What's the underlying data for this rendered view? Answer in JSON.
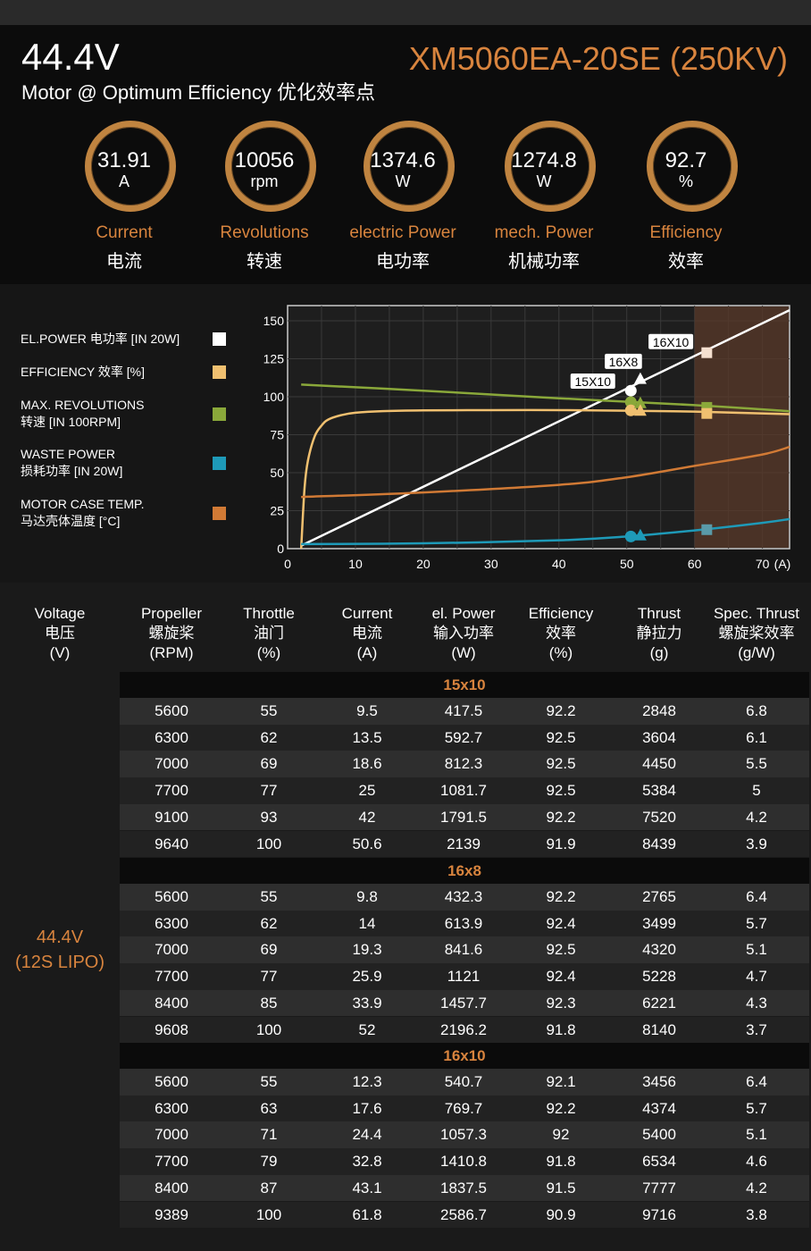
{
  "header": {
    "voltage": "44.4V",
    "subtitle": "Motor @ Optimum Efficiency  优化效率点",
    "model": "XM5060EA-20SE (250KV)"
  },
  "gauges": [
    {
      "value": "31.91",
      "unit": "A",
      "label_en": "Current",
      "label_zh": "电流"
    },
    {
      "value": "10056",
      "unit": "rpm",
      "label_en": "Revolutions",
      "label_zh": "转速"
    },
    {
      "value": "1374.6",
      "unit": "W",
      "label_en": "electric Power",
      "label_zh": "电功率"
    },
    {
      "value": "1274.8",
      "unit": "W",
      "label_en": "mech. Power",
      "label_zh": "机械功率"
    },
    {
      "value": "92.7",
      "unit": "%",
      "label_en": "Efficiency",
      "label_zh": "效率"
    }
  ],
  "legend": [
    {
      "line1": "EL.POWER 电功率 [IN 20W]",
      "line2": "",
      "color": "#ffffff"
    },
    {
      "line1": "EFFICIENCY 效率 [%]",
      "line2": "",
      "color": "#f0c070"
    },
    {
      "line1": "MAX. REVOLUTIONS",
      "line2": "转速 [IN 100RPM]",
      "color": "#8aa83a"
    },
    {
      "line1": "WASTE POWER",
      "line2": "损耗功率 [IN 20W]",
      "color": "#1e9ab8"
    },
    {
      "line1": "MOTOR CASE TEMP.",
      "line2": "马达壳体温度 [°C]",
      "color": "#d17a35"
    }
  ],
  "chart_data": {
    "type": "line",
    "xlim": [
      0,
      74
    ],
    "ylim": [
      0,
      160
    ],
    "x_ticks": [
      {
        "value": 0,
        "label": "0"
      },
      {
        "value": 10,
        "label": "10"
      },
      {
        "value": 20,
        "label": "20"
      },
      {
        "value": 30,
        "label": "30"
      },
      {
        "value": 40,
        "label": "40"
      },
      {
        "value": 50,
        "label": "50"
      },
      {
        "value": 60,
        "label": "60"
      },
      {
        "value": 70,
        "label": "70"
      }
    ],
    "x_unit": "(A)",
    "y_ticks": [
      0,
      25,
      50,
      75,
      100,
      125,
      150
    ],
    "grid": true,
    "highlight_region": {
      "x_from": 60,
      "x_to": 74,
      "color": "#5a3a2a"
    },
    "series": [
      {
        "key": "el_power",
        "color": "#ffffff",
        "x": [
          2,
          74
        ],
        "y": [
          2,
          157
        ]
      },
      {
        "key": "efficiency",
        "color": "#f0c070",
        "x": [
          2,
          2.5,
          3,
          4,
          5,
          6,
          8,
          10,
          14,
          20,
          30,
          40,
          50,
          60,
          74
        ],
        "y": [
          0,
          40,
          58,
          74,
          81,
          85,
          88,
          89.5,
          90.5,
          91,
          91.2,
          91.2,
          90.8,
          90.2,
          88.5
        ]
      },
      {
        "key": "max_revolutions",
        "color": "#8aa83a",
        "x": [
          2,
          20,
          40,
          60,
          74
        ],
        "y": [
          108,
          104,
          99,
          94.5,
          90.5
        ]
      },
      {
        "key": "waste_power",
        "color": "#1e9ab8",
        "x": [
          2,
          20,
          40,
          50,
          60,
          70,
          74
        ],
        "y": [
          3,
          3.5,
          5.5,
          8,
          12,
          17,
          19.5
        ]
      },
      {
        "key": "case_temp",
        "color": "#d17a35",
        "x": [
          2,
          20,
          40,
          50,
          60,
          70,
          74
        ],
        "y": [
          34,
          37,
          42,
          47,
          54.5,
          62,
          67
        ]
      }
    ],
    "markers": [
      {
        "prop": "15X10",
        "shape": "circle",
        "x": 50.6,
        "points": [
          {
            "y": 104,
            "color": "#ffffff"
          },
          {
            "y": 96.5,
            "color": "#8aa83a"
          },
          {
            "y": 91,
            "color": "#f0c070"
          },
          {
            "y": 8,
            "color": "#1e9ab8"
          }
        ]
      },
      {
        "prop": "16X8",
        "shape": "triangle",
        "x": 52,
        "points": [
          {
            "y": 112,
            "color": "#ffffff"
          },
          {
            "y": 96,
            "color": "#8aa83a"
          },
          {
            "y": 91,
            "color": "#f0c070"
          },
          {
            "y": 9,
            "color": "#1e9ab8"
          }
        ]
      },
      {
        "prop": "16X10",
        "shape": "square",
        "x": 61.8,
        "points": [
          {
            "y": 129,
            "color": "#f5e0d0"
          },
          {
            "y": 93,
            "color": "#8aa83a"
          },
          {
            "y": 89,
            "color": "#f0c070"
          },
          {
            "y": 12.5,
            "color": "#5a9aa8"
          }
        ]
      }
    ],
    "labels": [
      {
        "text": "15X10",
        "x": 45,
        "y": 110
      },
      {
        "text": "16X8",
        "x": 49.5,
        "y": 123
      },
      {
        "text": "16X10",
        "x": 56.5,
        "y": 136
      }
    ]
  },
  "table": {
    "headers": [
      {
        "en": "Voltage",
        "zh": "电压",
        "unit": "(V)"
      },
      {
        "en": "Propeller",
        "zh": "螺旋桨",
        "unit": "(RPM)"
      },
      {
        "en": "Throttle",
        "zh": "油门",
        "unit": "(%)"
      },
      {
        "en": "Current",
        "zh": "电流",
        "unit": "(A)"
      },
      {
        "en": "el. Power",
        "zh": "输入功率",
        "unit": "(W)"
      },
      {
        "en": "Efficiency",
        "zh": "效率",
        "unit": "(%)"
      },
      {
        "en": "Thrust",
        "zh": "静拉力",
        "unit": "(g)"
      },
      {
        "en": "Spec. Thrust",
        "zh": "螺旋桨效率",
        "unit": "(g/W)"
      }
    ],
    "voltage_line1": "44.4V",
    "voltage_line2": "(12S LIPO)",
    "groups": [
      {
        "name": "15x10",
        "rows": [
          [
            "5600",
            "55",
            "9.5",
            "417.5",
            "92.2",
            "2848",
            "6.8"
          ],
          [
            "6300",
            "62",
            "13.5",
            "592.7",
            "92.5",
            "3604",
            "6.1"
          ],
          [
            "7000",
            "69",
            "18.6",
            "812.3",
            "92.5",
            "4450",
            "5.5"
          ],
          [
            "7700",
            "77",
            "25",
            "1081.7",
            "92.5",
            "5384",
            "5"
          ],
          [
            "9100",
            "93",
            "42",
            "1791.5",
            "92.2",
            "7520",
            "4.2"
          ],
          [
            "9640",
            "100",
            "50.6",
            "2139",
            "91.9",
            "8439",
            "3.9"
          ]
        ]
      },
      {
        "name": "16x8",
        "rows": [
          [
            "5600",
            "55",
            "9.8",
            "432.3",
            "92.2",
            "2765",
            "6.4"
          ],
          [
            "6300",
            "62",
            "14",
            "613.9",
            "92.4",
            "3499",
            "5.7"
          ],
          [
            "7000",
            "69",
            "19.3",
            "841.6",
            "92.5",
            "4320",
            "5.1"
          ],
          [
            "7700",
            "77",
            "25.9",
            "1121",
            "92.4",
            "5228",
            "4.7"
          ],
          [
            "8400",
            "85",
            "33.9",
            "1457.7",
            "92.3",
            "6221",
            "4.3"
          ],
          [
            "9608",
            "100",
            "52",
            "2196.2",
            "91.8",
            "8140",
            "3.7"
          ]
        ]
      },
      {
        "name": "16x10",
        "rows": [
          [
            "5600",
            "55",
            "12.3",
            "540.7",
            "92.1",
            "3456",
            "6.4"
          ],
          [
            "6300",
            "63",
            "17.6",
            "769.7",
            "92.2",
            "4374",
            "5.7"
          ],
          [
            "7000",
            "71",
            "24.4",
            "1057.3",
            "92",
            "5400",
            "5.1"
          ],
          [
            "7700",
            "79",
            "32.8",
            "1410.8",
            "91.8",
            "6534",
            "4.6"
          ],
          [
            "8400",
            "87",
            "43.1",
            "1837.5",
            "91.5",
            "7777",
            "4.2"
          ],
          [
            "9389",
            "100",
            "61.8",
            "2586.7",
            "90.9",
            "9716",
            "3.8"
          ]
        ]
      }
    ]
  }
}
